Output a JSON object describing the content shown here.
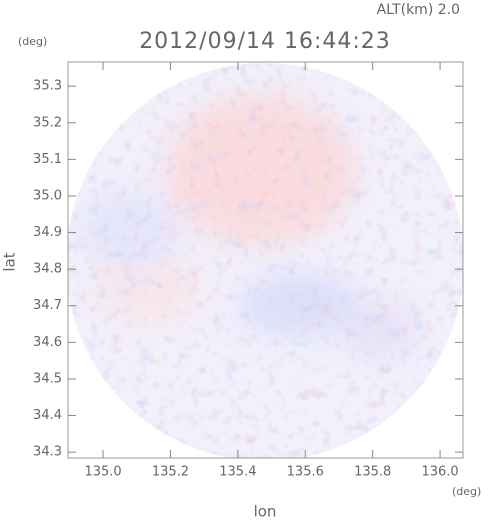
{
  "chart_data": {
    "type": "heatmap",
    "title": "2012/09/14 16:44:23",
    "subtitle": "ALT(km) 2.0",
    "x_label": "lon",
    "y_label": "lat",
    "x_unit": "(deg)",
    "y_unit": "(deg)",
    "xlim": [
      134.896,
      136.068
    ],
    "ylim": [
      34.284,
      35.366
    ],
    "xticks": [
      {
        "value": 135.0,
        "label": "135.0"
      },
      135.2,
      135.4,
      135.6,
      135.8,
      {
        "value": 136.0,
        "label": "136.0"
      }
    ],
    "yticks": [
      34.3,
      34.4,
      34.5,
      34.6,
      34.7,
      34.8,
      34.9,
      {
        "value": 35.0,
        "label": "35.0"
      },
      35.1,
      35.2,
      35.3
    ]
  }
}
